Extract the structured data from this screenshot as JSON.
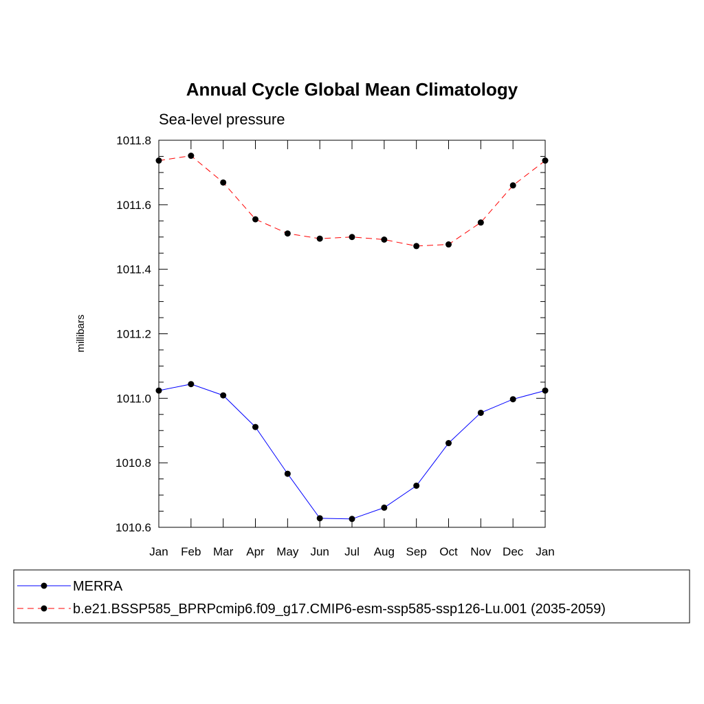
{
  "chart_data": {
    "type": "line",
    "title": "Annual Cycle Global Mean Climatology",
    "subtitle": "Sea-level pressure",
    "xlabel": "",
    "ylabel": "millibars",
    "categories": [
      "Jan",
      "Feb",
      "Mar",
      "Apr",
      "May",
      "Jun",
      "Jul",
      "Aug",
      "Sep",
      "Oct",
      "Nov",
      "Dec",
      "Jan"
    ],
    "ylim": [
      1010.6,
      1011.8
    ],
    "yticks": [
      1010.6,
      1010.8,
      1011.0,
      1011.2,
      1011.4,
      1011.6,
      1011.8
    ],
    "ytick_labels": [
      "1010.6",
      "1010.8",
      "1011.0",
      "1011.2",
      "1011.4",
      "1011.6",
      "1011.8"
    ],
    "y_minor_step": 0.05,
    "grid": false,
    "legend_position": "bottom",
    "series": [
      {
        "name": "MERRA",
        "color": "#0000ff",
        "dash": "solid",
        "values": [
          1011.024,
          1011.044,
          1011.009,
          1010.911,
          1010.766,
          1010.628,
          1010.626,
          1010.661,
          1010.729,
          1010.861,
          1010.955,
          1010.997,
          1011.024
        ]
      },
      {
        "name": "b.e21.BSSP585_BPRPcmip6.f09_g17.CMIP6-esm-ssp585-ssp126-Lu.001 (2035-2059)",
        "color": "#ff0000",
        "dash": "dashed",
        "values": [
          1011.737,
          1011.752,
          1011.669,
          1011.555,
          1011.511,
          1011.495,
          1011.5,
          1011.492,
          1011.472,
          1011.477,
          1011.545,
          1011.66,
          1011.737
        ]
      }
    ]
  }
}
